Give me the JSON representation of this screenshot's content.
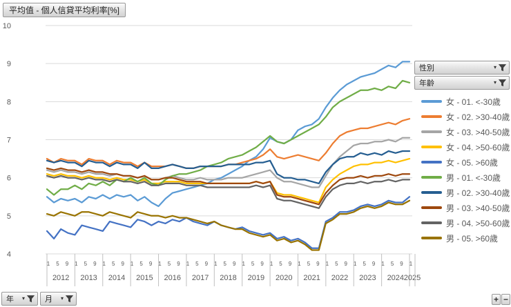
{
  "title_button": "平均值 - 個人信貸平均利率[%]",
  "filters": {
    "gender_label": "性別",
    "age_label": "年齡"
  },
  "axis_field_buttons": {
    "year_label": "年",
    "month_label": "月"
  },
  "zoom_buttons": {
    "plus": "+",
    "minus": "−"
  },
  "chart_data": {
    "type": "line",
    "title": "平均值 - 個人信貸平均利率[%]",
    "ylabel": "",
    "xlabel": "",
    "ylim": [
      4,
      10
    ],
    "yticks": [
      4,
      5,
      6,
      7,
      8,
      9,
      10
    ],
    "grid": true,
    "legend_position": "right",
    "x_note": "monthly axis Jan 2012 - Jan 2025; values sampled quarterly",
    "year_labels": [
      "2012",
      "2013",
      "2014",
      "2015",
      "2016",
      "2017",
      "2018",
      "2019",
      "2020",
      "2021",
      "2022",
      "2023",
      "2024",
      "2025"
    ],
    "month_tick_labels": [
      "1",
      "5",
      "9"
    ],
    "x": [
      "2012-01",
      "2012-04",
      "2012-07",
      "2012-10",
      "2013-01",
      "2013-04",
      "2013-07",
      "2013-10",
      "2014-01",
      "2014-04",
      "2014-07",
      "2014-10",
      "2015-01",
      "2015-04",
      "2015-07",
      "2015-10",
      "2016-01",
      "2016-04",
      "2016-07",
      "2016-10",
      "2017-01",
      "2017-04",
      "2017-07",
      "2017-10",
      "2018-01",
      "2018-04",
      "2018-07",
      "2018-10",
      "2019-01",
      "2019-04",
      "2019-07",
      "2019-10",
      "2020-01",
      "2020-04",
      "2020-07",
      "2020-10",
      "2021-01",
      "2021-04",
      "2021-07",
      "2021-10",
      "2022-01",
      "2022-04",
      "2022-07",
      "2022-10",
      "2023-01",
      "2023-04",
      "2023-07",
      "2023-10",
      "2024-01",
      "2024-04",
      "2024-07",
      "2024-10",
      "2025-01"
    ],
    "series": [
      {
        "name": "女 - 01. <-30歲",
        "color": "#5B9BD5",
        "values": [
          5.5,
          5.35,
          5.45,
          5.4,
          5.45,
          5.35,
          5.5,
          5.45,
          5.55,
          5.45,
          5.55,
          5.5,
          5.55,
          5.4,
          5.5,
          5.35,
          5.25,
          5.45,
          5.6,
          5.65,
          5.7,
          5.75,
          5.8,
          5.85,
          5.95,
          6.0,
          6.1,
          6.2,
          6.3,
          6.45,
          6.55,
          6.75,
          7.05,
          6.95,
          6.9,
          7.0,
          7.25,
          7.35,
          7.4,
          7.55,
          7.85,
          8.1,
          8.3,
          8.45,
          8.55,
          8.65,
          8.7,
          8.75,
          8.85,
          8.95,
          8.9,
          9.05,
          9.05
        ]
      },
      {
        "name": "女 - 02. >30-40歲",
        "color": "#ED7D31",
        "values": [
          6.5,
          6.4,
          6.5,
          6.45,
          6.45,
          6.35,
          6.5,
          6.45,
          6.45,
          6.35,
          6.45,
          6.4,
          6.4,
          6.3,
          6.4,
          6.3,
          6.3,
          6.3,
          6.35,
          6.3,
          6.25,
          6.25,
          6.3,
          6.3,
          6.3,
          6.3,
          6.35,
          6.35,
          6.4,
          6.45,
          6.5,
          6.6,
          6.75,
          6.55,
          6.5,
          6.55,
          6.6,
          6.55,
          6.5,
          6.45,
          6.65,
          6.9,
          7.1,
          7.2,
          7.25,
          7.3,
          7.3,
          7.35,
          7.4,
          7.45,
          7.4,
          7.5,
          7.55
        ]
      },
      {
        "name": "女 - 03. >40-50歲",
        "color": "#A5A5A5",
        "values": [
          6.2,
          6.15,
          6.2,
          6.15,
          6.15,
          6.1,
          6.15,
          6.1,
          6.1,
          6.05,
          6.1,
          6.05,
          6.05,
          6.0,
          6.05,
          5.95,
          5.95,
          6.0,
          6.05,
          6.0,
          5.95,
          5.95,
          6.0,
          5.95,
          5.95,
          5.95,
          6.0,
          6.0,
          6.0,
          6.05,
          6.1,
          6.15,
          6.2,
          6.0,
          5.9,
          5.9,
          5.85,
          5.8,
          5.75,
          5.75,
          6.05,
          6.35,
          6.55,
          6.7,
          6.85,
          6.9,
          6.9,
          6.95,
          6.95,
          7.0,
          6.95,
          7.05,
          7.05
        ]
      },
      {
        "name": "女 - 04. >50-60歲",
        "color": "#FFC000",
        "values": [
          6.1,
          6.05,
          6.1,
          6.05,
          6.05,
          6.0,
          6.05,
          6.0,
          6.0,
          5.95,
          6.0,
          5.95,
          5.95,
          5.9,
          5.95,
          5.85,
          5.85,
          5.9,
          5.9,
          5.9,
          5.85,
          5.85,
          5.85,
          5.85,
          5.85,
          5.85,
          5.85,
          5.85,
          5.85,
          5.85,
          5.9,
          5.85,
          5.9,
          5.6,
          5.55,
          5.55,
          5.5,
          5.45,
          5.4,
          5.35,
          5.75,
          5.95,
          6.1,
          6.2,
          6.3,
          6.35,
          6.35,
          6.4,
          6.4,
          6.45,
          6.4,
          6.45,
          6.5
        ]
      },
      {
        "name": "女 - 05. >60歲",
        "color": "#4472C4",
        "values": [
          4.6,
          4.4,
          4.65,
          4.55,
          4.5,
          4.75,
          4.7,
          4.65,
          4.6,
          4.85,
          4.8,
          4.75,
          4.7,
          4.9,
          4.85,
          4.75,
          4.85,
          4.8,
          4.9,
          4.85,
          4.95,
          4.85,
          4.8,
          4.75,
          4.85,
          4.75,
          4.7,
          4.65,
          4.7,
          4.6,
          4.55,
          4.5,
          4.55,
          4.4,
          4.45,
          4.35,
          4.4,
          4.3,
          4.15,
          4.15,
          4.85,
          4.95,
          5.1,
          5.1,
          5.15,
          5.25,
          5.3,
          5.25,
          5.3,
          5.4,
          5.35,
          5.35,
          5.5
        ]
      },
      {
        "name": "男 - 01. <-30歲",
        "color": "#70AD47",
        "values": [
          5.7,
          5.55,
          5.7,
          5.7,
          5.8,
          5.7,
          5.85,
          5.8,
          5.9,
          5.8,
          5.95,
          5.9,
          6.0,
          5.9,
          6.0,
          5.85,
          5.8,
          5.95,
          6.05,
          6.1,
          6.1,
          6.15,
          6.2,
          6.3,
          6.35,
          6.4,
          6.5,
          6.55,
          6.6,
          6.7,
          6.8,
          6.95,
          7.1,
          6.95,
          6.9,
          7.0,
          7.1,
          7.2,
          7.3,
          7.4,
          7.6,
          7.85,
          8.0,
          8.1,
          8.2,
          8.3,
          8.3,
          8.35,
          8.3,
          8.4,
          8.35,
          8.55,
          8.5
        ]
      },
      {
        "name": "男 - 02. >30-40歲",
        "color": "#255E91",
        "values": [
          6.45,
          6.4,
          6.45,
          6.4,
          6.4,
          6.3,
          6.45,
          6.4,
          6.4,
          6.3,
          6.4,
          6.35,
          6.35,
          6.25,
          6.4,
          6.25,
          6.25,
          6.3,
          6.35,
          6.3,
          6.25,
          6.25,
          6.3,
          6.3,
          6.3,
          6.3,
          6.35,
          6.35,
          6.35,
          6.35,
          6.4,
          6.4,
          6.45,
          6.1,
          6.0,
          6.0,
          5.95,
          5.95,
          5.9,
          5.85,
          6.15,
          6.35,
          6.5,
          6.55,
          6.55,
          6.65,
          6.6,
          6.65,
          6.6,
          6.7,
          6.65,
          6.7,
          6.7
        ]
      },
      {
        "name": "男 - 03. >40-50歲",
        "color": "#9E480E",
        "values": [
          6.25,
          6.2,
          6.25,
          6.2,
          6.2,
          6.15,
          6.2,
          6.15,
          6.15,
          6.1,
          6.1,
          6.05,
          6.05,
          6.0,
          6.05,
          5.95,
          5.95,
          6.0,
          6.0,
          5.95,
          5.9,
          5.9,
          5.9,
          5.85,
          5.85,
          5.85,
          5.85,
          5.85,
          5.85,
          5.85,
          5.9,
          5.85,
          5.9,
          5.55,
          5.5,
          5.5,
          5.45,
          5.4,
          5.35,
          5.3,
          5.6,
          5.8,
          5.95,
          6.0,
          6.0,
          6.05,
          6.0,
          6.05,
          6.05,
          6.1,
          6.05,
          6.1,
          6.1
        ]
      },
      {
        "name": "男 - 04. >50-60歲",
        "color": "#636363",
        "values": [
          6.05,
          6.0,
          6.05,
          6.0,
          6.0,
          5.95,
          6.0,
          5.95,
          5.95,
          5.9,
          5.95,
          5.9,
          5.9,
          5.85,
          5.9,
          5.8,
          5.8,
          5.85,
          5.85,
          5.85,
          5.8,
          5.8,
          5.8,
          5.75,
          5.75,
          5.75,
          5.75,
          5.75,
          5.75,
          5.75,
          5.8,
          5.75,
          5.8,
          5.45,
          5.4,
          5.4,
          5.35,
          5.3,
          5.25,
          5.2,
          5.5,
          5.7,
          5.8,
          5.85,
          5.85,
          5.9,
          5.85,
          5.9,
          5.9,
          5.95,
          5.9,
          5.95,
          5.95
        ]
      },
      {
        "name": "男 - 05. >60歲",
        "color": "#997300",
        "values": [
          5.05,
          5.0,
          5.1,
          5.05,
          5.0,
          5.1,
          5.1,
          5.05,
          5.0,
          5.1,
          5.05,
          5.0,
          4.95,
          5.1,
          5.05,
          5.0,
          5.0,
          4.95,
          5.0,
          4.95,
          4.95,
          4.9,
          4.85,
          4.8,
          4.85,
          4.75,
          4.7,
          4.65,
          4.65,
          4.55,
          4.5,
          4.45,
          4.5,
          4.35,
          4.4,
          4.3,
          4.35,
          4.25,
          4.1,
          4.1,
          4.8,
          4.9,
          5.05,
          5.05,
          5.1,
          5.2,
          5.25,
          5.2,
          5.25,
          5.35,
          5.3,
          5.3,
          5.4
        ]
      }
    ],
    "colors": {
      "axis_text": "#595959",
      "gridline": "#D9D9D9",
      "axis_cell_border": "#BFBFBF"
    }
  }
}
